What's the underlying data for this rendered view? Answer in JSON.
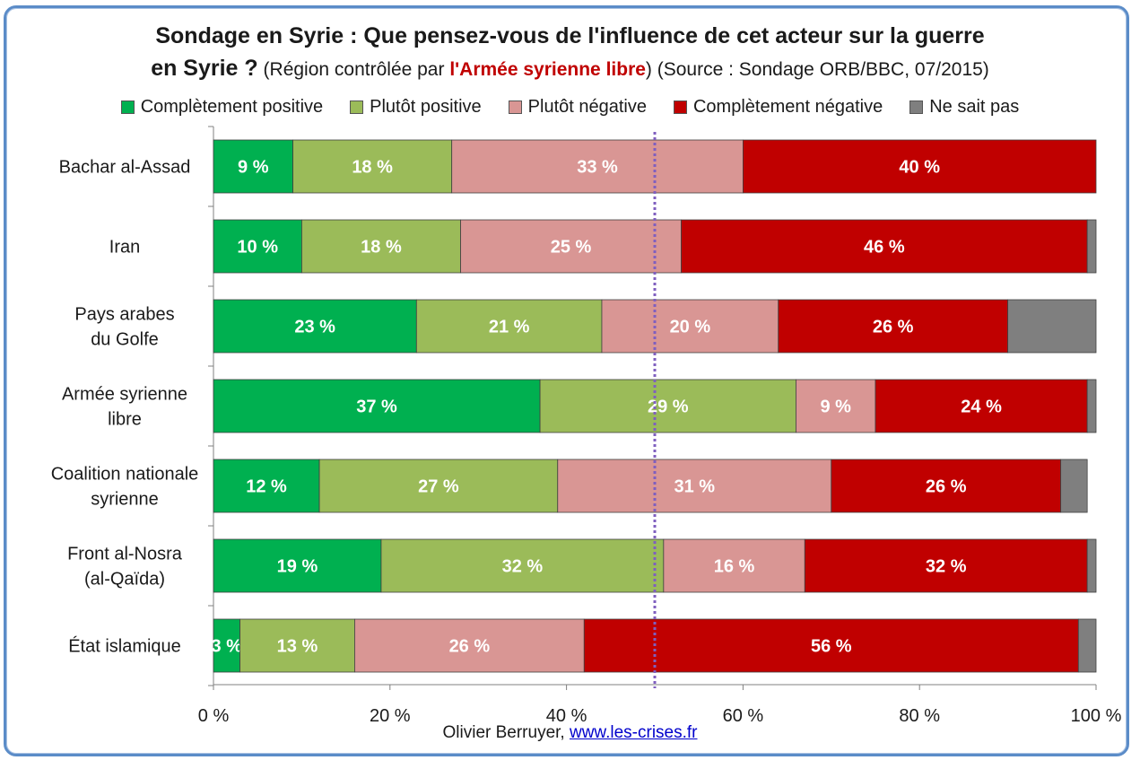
{
  "title": {
    "line1": "Sondage en Syrie : Que pensez-vous de l'influence de cet acteur sur la guerre",
    "line2_bold": "en Syrie ?",
    "line2_pre": "(Région contrôlée par ",
    "line2_red": "l'Armée syrienne libre",
    "line2_post": ") (Source : Sondage ORB/BBC, 07/2015)"
  },
  "footer": {
    "author": "Olivier Berruyer,",
    "link": "www.les-crises.fr"
  },
  "chart_data": {
    "type": "bar",
    "orientation": "horizontal",
    "stacked": true,
    "categories": [
      "Bachar al-Assad",
      "Iran",
      "Pays arabes du Golfe",
      "Armée syrienne libre",
      "Coalition nationale syrienne",
      "Front al-Nosra (al-Qaïda)",
      "État islamique"
    ],
    "category_lines": [
      [
        "Bachar al-Assad"
      ],
      [
        "Iran"
      ],
      [
        "Pays arabes",
        "du Golfe"
      ],
      [
        "Armée syrienne",
        "libre"
      ],
      [
        "Coalition nationale",
        "syrienne"
      ],
      [
        "Front al-Nosra",
        "(al-Qaïda)"
      ],
      [
        "État islamique"
      ]
    ],
    "series": [
      {
        "name": "Complètement positive",
        "color": "#00b050",
        "values": [
          9,
          10,
          23,
          37,
          12,
          19,
          3
        ],
        "labels": [
          "9 %",
          "10 %",
          "23 %",
          "37 %",
          "12 %",
          "19 %",
          "3 %"
        ]
      },
      {
        "name": "Plutôt positive",
        "color": "#9bbb59",
        "values": [
          18,
          18,
          21,
          29,
          27,
          32,
          13
        ],
        "labels": [
          "18 %",
          "18 %",
          "21 %",
          "29 %",
          "27 %",
          "32 %",
          "13 %"
        ]
      },
      {
        "name": "Plutôt négative",
        "color": "#d99694",
        "values": [
          33,
          25,
          20,
          9,
          31,
          16,
          26
        ],
        "labels": [
          "33 %",
          "25 %",
          "20 %",
          "9 %",
          "31 %",
          "16 %",
          "26 %"
        ]
      },
      {
        "name": "Complètement négative",
        "color": "#c00000",
        "values": [
          40,
          46,
          26,
          24,
          26,
          32,
          56
        ],
        "labels": [
          "40 %",
          "46 %",
          "26 %",
          "24 %",
          "26 %",
          "32 %",
          "56 %"
        ]
      },
      {
        "name": "Ne sait pas",
        "color": "#7f7f7f",
        "values": [
          1,
          1,
          11,
          1,
          3,
          1,
          2
        ],
        "labels": [
          "",
          "",
          "",
          "",
          "",
          "",
          ""
        ]
      }
    ],
    "xlim": [
      0,
      100
    ],
    "xticks": [
      "0 %",
      "20 %",
      "40 %",
      "60 %",
      "80 %",
      "100 %"
    ],
    "reference_line_x": 50,
    "legend_position": "top"
  }
}
